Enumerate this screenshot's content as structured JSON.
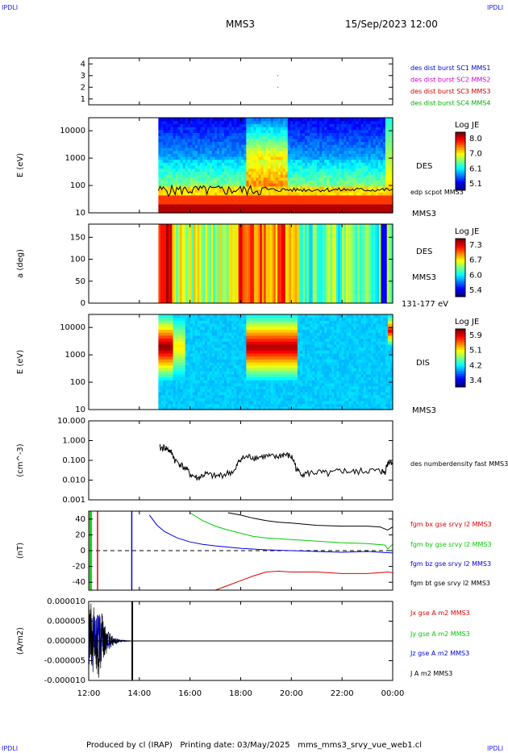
{
  "header": {
    "corner_left_top": "IPDLI",
    "corner_right_top": "IPDLI",
    "corner_left_bottom": "IPDLI",
    "corner_right_bottom": "IPDLI",
    "spacecraft": "MMS3",
    "datetime": "15/Sep/2023 12:00"
  },
  "footer": {
    "produced_by": "Produced by cl (IRAP)",
    "printing_date": "Printing date: 03/May/2025",
    "file": "mms_mms3_srvy_vue_web1.cl"
  },
  "chart_data": [
    {
      "type": "line",
      "id": "burst",
      "ylim": [
        0.5,
        4.5
      ],
      "yticks": [
        "1",
        "2",
        "3",
        "4"
      ],
      "legend": [
        {
          "label": "des dist burst SC1 MMS1",
          "color": "#0000cc"
        },
        {
          "label": "des dist burst SC2 MMS2",
          "color": "#cc00cc"
        },
        {
          "label": "des dist burst SC3 MMS3",
          "color": "#cc0000"
        },
        {
          "label": "des dist burst SC4 MMS4",
          "color": "#00b000"
        }
      ],
      "markers": [
        {
          "x": 19.45,
          "y": 3
        },
        {
          "x": 19.45,
          "y": 2
        }
      ]
    },
    {
      "type": "heatmap",
      "id": "des-energy",
      "ylabel": "E (eV)",
      "scale": "log",
      "ylim": [
        10,
        30000
      ],
      "yticks": [
        "10",
        "100",
        "1000",
        "10000"
      ],
      "data_start": 14.75,
      "instrument_label": "DES",
      "spacecraft_label": "MMS3",
      "overlay_label": "edp scpot MMS3",
      "colorbar": {
        "title": "Log JE",
        "ticks": [
          "8.0",
          "7.0",
          "6.1",
          "5.1"
        ]
      }
    },
    {
      "type": "heatmap",
      "id": "des-pitch",
      "ylabel": "a (deg)",
      "ylim": [
        0,
        180
      ],
      "yticks": [
        "0",
        "50",
        "100",
        "150"
      ],
      "data_start": 14.75,
      "instrument_label": "DES",
      "spacecraft_label": "MMS3",
      "energy_range_label": "131-177 eV",
      "colorbar": {
        "title": "Log JE",
        "ticks": [
          "7.3",
          "6.7",
          "6.0",
          "5.4"
        ]
      }
    },
    {
      "type": "heatmap",
      "id": "dis-energy",
      "ylabel": "E (eV)",
      "scale": "log",
      "ylim": [
        10,
        30000
      ],
      "yticks": [
        "10",
        "100",
        "1000",
        "10000"
      ],
      "data_start": 14.75,
      "instrument_label": "DIS",
      "spacecraft_label": "MMS3",
      "colorbar": {
        "title": "Log JE",
        "ticks": [
          "5.9",
          "5.1",
          "4.2",
          "3.4"
        ]
      }
    },
    {
      "type": "line",
      "id": "density",
      "ylabel": "(cm^-3)",
      "scale": "log",
      "ylim": [
        0.001,
        10
      ],
      "yticks": [
        "0.001",
        "0.010",
        "0.100",
        "1.000",
        "10.000"
      ],
      "series": [
        {
          "name": "des numberdensity fast MMS3",
          "color": "#000000",
          "x": [
            14.8,
            15.0,
            15.2,
            15.4,
            15.7,
            16.0,
            16.3,
            16.6,
            17.0,
            17.4,
            17.8,
            18.0,
            18.3,
            18.6,
            19.0,
            19.4,
            19.7,
            20.0,
            20.2,
            20.5,
            21.0,
            21.5,
            22.0,
            22.5,
            23.0,
            23.5,
            23.7,
            23.85,
            24.0
          ],
          "y": [
            0.4,
            0.45,
            0.3,
            0.1,
            0.05,
            0.02,
            0.012,
            0.02,
            0.015,
            0.02,
            0.03,
            0.12,
            0.15,
            0.14,
            0.16,
            0.14,
            0.2,
            0.15,
            0.03,
            0.02,
            0.025,
            0.02,
            0.03,
            0.025,
            0.03,
            0.028,
            0.025,
            0.09,
            0.08
          ]
        }
      ]
    },
    {
      "type": "line",
      "id": "magnetic",
      "ylabel": "(nT)",
      "ylim": [
        -50,
        50
      ],
      "yticks": [
        "-40",
        "-20",
        "0",
        "20",
        "40"
      ],
      "series": [
        {
          "name": "fgm bx gse srvy l2 MMS3",
          "color": "#dd0000",
          "x": [
            17.0,
            17.5,
            18.0,
            18.5,
            19.0,
            19.5,
            20.0,
            21.0,
            22.0,
            23.0,
            23.8,
            24.0
          ],
          "y": [
            -50,
            -44,
            -38,
            -32,
            -27,
            -26,
            -27,
            -27,
            -29,
            -29,
            -27,
            -28
          ]
        },
        {
          "name": "fgm by gse srvy l2 MMS3",
          "color": "#00cc00",
          "x": [
            16.0,
            16.5,
            17.0,
            17.5,
            18.0,
            18.5,
            19.0,
            20.0,
            21.0,
            22.0,
            23.0,
            23.7,
            23.8,
            24.0
          ],
          "y": [
            48,
            38,
            31,
            26,
            22,
            18,
            16,
            14,
            12,
            10,
            9,
            7,
            2,
            8
          ]
        },
        {
          "name": "fgm bz gse srvy l2 MMS3",
          "color": "#0000dd",
          "x": [
            14.4,
            14.7,
            15.0,
            15.5,
            16.0,
            16.5,
            17.0,
            18.0,
            19.0,
            20.0,
            21.0,
            22.0,
            23.0,
            24.0
          ],
          "y": [
            45,
            32,
            24,
            16,
            11,
            8,
            6,
            3,
            1,
            0,
            -1,
            -2,
            -1,
            -3
          ]
        },
        {
          "name": "fgm bt gse srvy l2 MMS3",
          "color": "#000000",
          "x": [
            17.5,
            18.0,
            18.5,
            19.0,
            19.5,
            20.0,
            21.0,
            22.0,
            23.0,
            23.5,
            23.8,
            24.0
          ],
          "y": [
            48,
            45,
            41,
            38,
            36,
            35,
            32,
            31,
            31,
            30,
            26,
            30
          ]
        }
      ]
    },
    {
      "type": "line",
      "id": "current",
      "ylabel": "(A/m2)",
      "ylim": [
        -0.0001,
        0.0001
      ],
      "yticks": [
        "-0.000010",
        "-0.000005",
        "0.000000",
        "0.000005",
        "0.000010"
      ],
      "series": [
        {
          "name": "Jx gse A m2 MMS3",
          "color": "#dd0000"
        },
        {
          "name": "Jy gse A m2 MMS3",
          "color": "#00cc00"
        },
        {
          "name": "Jz gse A m2 MMS3",
          "color": "#0000dd"
        },
        {
          "name": "J A m2 MMS3",
          "color": "#000000"
        }
      ]
    }
  ],
  "x_axis": {
    "xlim": [
      12,
      24
    ],
    "ticks": [
      {
        "x": 12,
        "label": "12:00"
      },
      {
        "x": 14,
        "label": "14:00"
      },
      {
        "x": 16,
        "label": "16:00"
      },
      {
        "x": 18,
        "label": "18:00"
      },
      {
        "x": 20,
        "label": "20:00"
      },
      {
        "x": 22,
        "label": "22:00"
      },
      {
        "x": 24,
        "label": "00:00"
      }
    ]
  }
}
